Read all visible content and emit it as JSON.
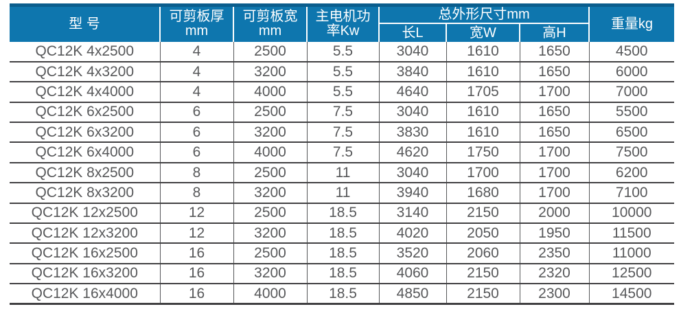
{
  "colors": {
    "header_bg": "#0e76ae",
    "header_top": "#0a5d8d",
    "grid_dark": "#414042",
    "grid_light": "#555658",
    "body_text": "#57585a",
    "header_text": "#ffffff"
  },
  "table": {
    "header": {
      "model": "型 号",
      "thickness": [
        "可剪板厚",
        "mm"
      ],
      "plate_width": [
        "可剪板宽",
        "mm"
      ],
      "power": [
        "主电机功",
        "率Kw"
      ],
      "dimensions_group": "总外形尺寸mm",
      "dim_length": "长L",
      "dim_width": "宽W",
      "dim_height": "高H",
      "weight": "重量kg"
    },
    "rows": [
      [
        "QC12K 4x2500",
        "4",
        "2500",
        "5.5",
        "3040",
        "1610",
        "1650",
        "4500"
      ],
      [
        "QC12K 4x3200",
        "4",
        "3200",
        "5.5",
        "3840",
        "1610",
        "1650",
        "6000"
      ],
      [
        "QC12K 4x4000",
        "4",
        "4000",
        "5.5",
        "4640",
        "1705",
        "1700",
        "7000"
      ],
      [
        "QC12K 6x2500",
        "6",
        "2500",
        "7.5",
        "3040",
        "1610",
        "1650",
        "5500"
      ],
      [
        "QC12K 6x3200",
        "6",
        "3200",
        "7.5",
        "3830",
        "1610",
        "1650",
        "6500"
      ],
      [
        "QC12K 6x4000",
        "6",
        "4000",
        "7.5",
        "4620",
        "1750",
        "1700",
        "7500"
      ],
      [
        "QC12K 8x2500",
        "8",
        "2500",
        "11",
        "3040",
        "1700",
        "1700",
        "6200"
      ],
      [
        "QC12K 8x3200",
        "8",
        "3200",
        "11",
        "3940",
        "1680",
        "1700",
        "7100"
      ],
      [
        "QC12K 12x2500",
        "12",
        "2500",
        "18.5",
        "3140",
        "2150",
        "2000",
        "10000"
      ],
      [
        "QC12K 12x3200",
        "12",
        "3200",
        "18.5",
        "4020",
        "2050",
        "1950",
        "11500"
      ],
      [
        "QC12K 16x2500",
        "16",
        "2500",
        "18.5",
        "3520",
        "2060",
        "2350",
        "11000"
      ],
      [
        "QC12K 16x3200",
        "16",
        "3200",
        "18.5",
        "4060",
        "2150",
        "2320",
        "12500"
      ],
      [
        "QC12K 16x4000",
        "16",
        "4000",
        "18.5",
        "4850",
        "2150",
        "2300",
        "14500"
      ]
    ]
  }
}
